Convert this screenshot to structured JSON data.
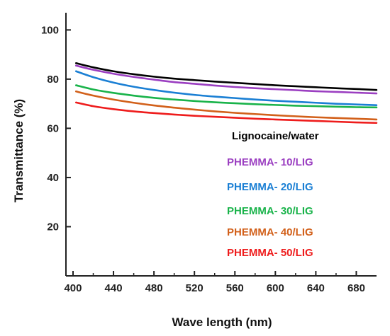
{
  "chart_data": {
    "type": "line",
    "xlabel": "Wave length (nm)",
    "ylabel": "Transmittance (%)",
    "xlim": [
      393,
      700
    ],
    "ylim": [
      0,
      107
    ],
    "xticks": [
      400,
      440,
      480,
      520,
      560,
      600,
      640,
      680
    ],
    "yticks": [
      20,
      40,
      60,
      80,
      100
    ],
    "grid": false,
    "legend_position": "center-right",
    "x": [
      403,
      420,
      440,
      460,
      480,
      500,
      520,
      540,
      560,
      580,
      600,
      620,
      640,
      660,
      680,
      700
    ],
    "series": [
      {
        "name": "Lignocaine/water",
        "color": "#000000",
        "values": [
          86.5,
          84.8,
          83.2,
          82.0,
          81.0,
          80.2,
          79.6,
          79.0,
          78.5,
          78.0,
          77.5,
          77.1,
          76.7,
          76.3,
          76.0,
          75.6
        ]
      },
      {
        "name": "PHEMMA- 10/LIG",
        "color": "#9b3fc1",
        "values": [
          85.5,
          83.8,
          82.2,
          80.9,
          79.8,
          78.8,
          78.1,
          77.4,
          76.8,
          76.3,
          75.9,
          75.5,
          75.1,
          74.8,
          74.5,
          74.2
        ]
      },
      {
        "name": "PHEMMA- 20/LIG",
        "color": "#1a7fd4",
        "values": [
          83.2,
          80.8,
          78.6,
          76.9,
          75.6,
          74.5,
          73.6,
          72.9,
          72.3,
          71.7,
          71.2,
          70.8,
          70.4,
          70.0,
          69.7,
          69.4
        ]
      },
      {
        "name": "PHEMMA- 30/LIG",
        "color": "#19b34a",
        "values": [
          77.5,
          75.8,
          74.4,
          73.3,
          72.4,
          71.7,
          71.1,
          70.6,
          70.2,
          69.8,
          69.5,
          69.2,
          69.0,
          68.8,
          68.6,
          68.5
        ]
      },
      {
        "name": "PHEMMA- 40/LIG",
        "color": "#d2601a",
        "values": [
          75.0,
          73.3,
          71.7,
          70.4,
          69.3,
          68.4,
          67.6,
          66.9,
          66.3,
          65.8,
          65.3,
          64.9,
          64.5,
          64.2,
          63.9,
          63.6
        ]
      },
      {
        "name": "PHEMMA- 50/LIG",
        "color": "#ee1c1c",
        "values": [
          70.5,
          69.0,
          67.8,
          66.9,
          66.2,
          65.6,
          65.1,
          64.7,
          64.3,
          63.9,
          63.6,
          63.3,
          63.0,
          62.7,
          62.4,
          62.2
        ]
      }
    ]
  }
}
